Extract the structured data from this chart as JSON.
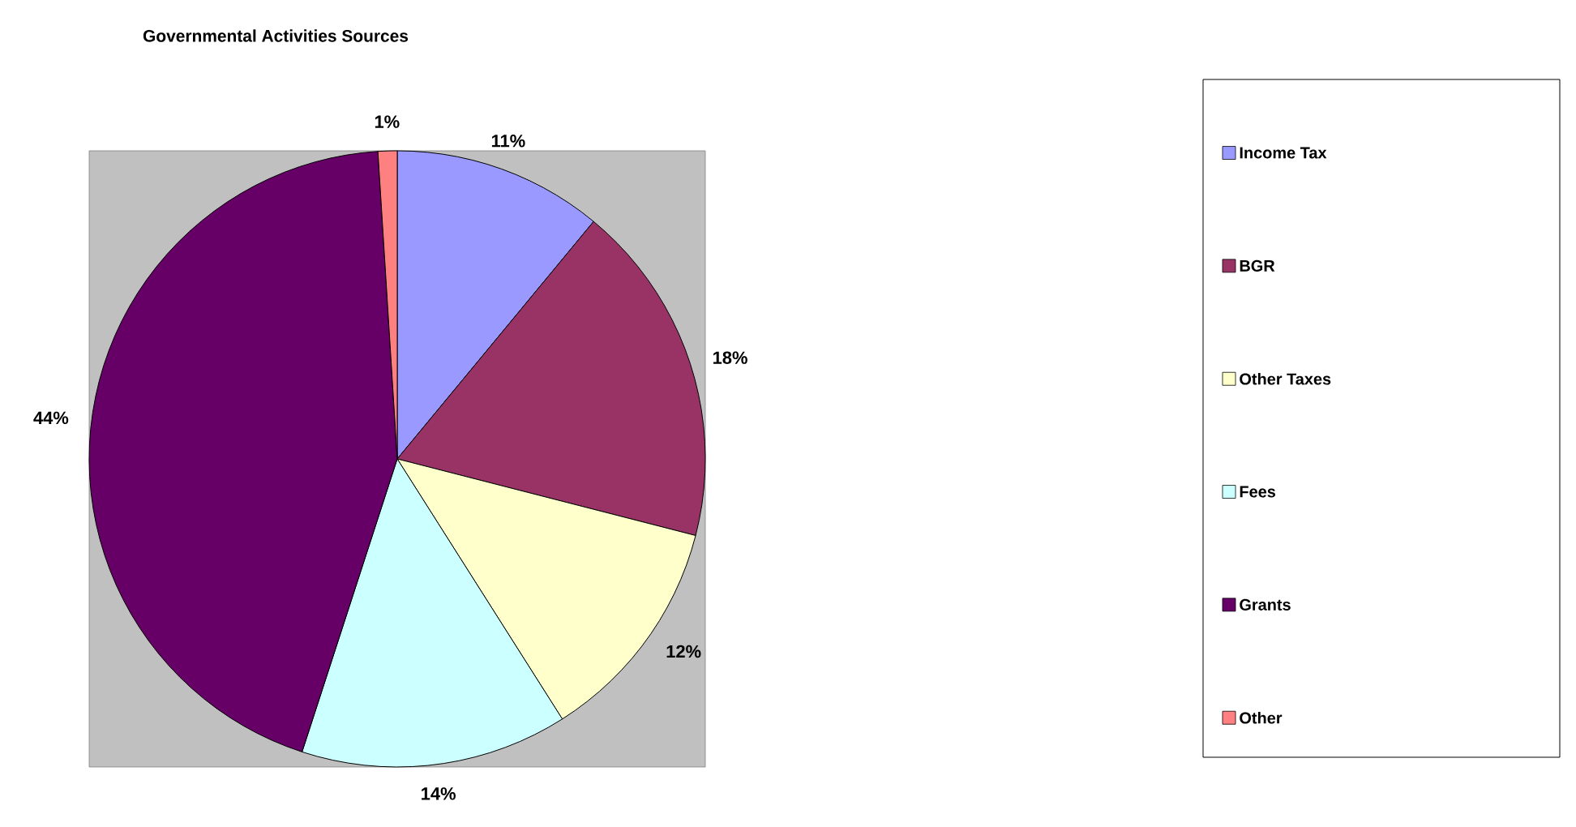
{
  "chart_data": {
    "type": "pie",
    "title": "Governmental Activities Sources",
    "categories": [
      "Income Tax",
      "BGR",
      "Other Taxes",
      "Fees",
      "Grants",
      "Other"
    ],
    "values": [
      11,
      18,
      12,
      14,
      44,
      1
    ],
    "value_labels": [
      "11%",
      "18%",
      "12%",
      "14%",
      "44%",
      "1%"
    ],
    "colors": [
      "#9999ff",
      "#993366",
      "#ffffcc",
      "#ccffff",
      "#660066",
      "#ff8080"
    ],
    "data_labels": true,
    "legend": "right"
  }
}
